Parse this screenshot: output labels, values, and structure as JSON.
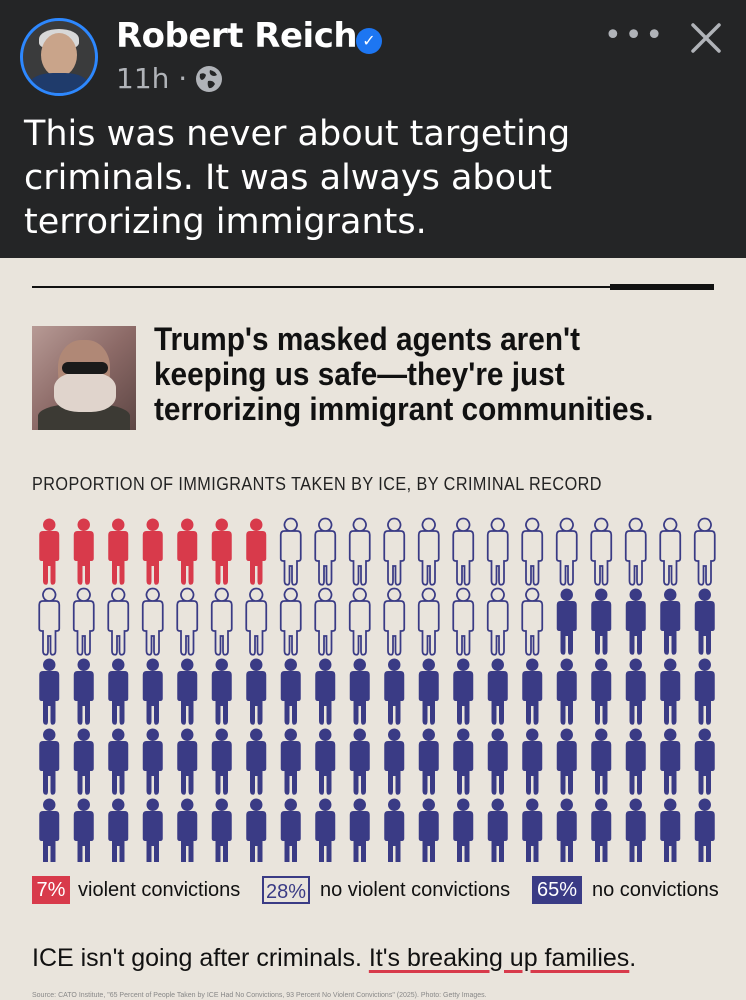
{
  "post": {
    "author": "Robert Reich",
    "verified_icon": "verified-badge-icon",
    "time": "11h",
    "separator": "·",
    "privacy_icon": "globe-icon",
    "more_label": "•••",
    "close_icon": "close-icon",
    "text": "This was never about targeting criminals. It was always about terrorizing immigrants."
  },
  "graphic": {
    "headline": "Trump's masked agents aren't keeping us safe—they're just terrorizing immigrant communities.",
    "subtitle": "PROPORTION OF IMMIGRANTS TAKEN BY ICE, BY CRIMINAL RECORD",
    "footer_prefix": "ICE isn't going after criminals. ",
    "footer_highlight": "It's breaking up families",
    "footer_suffix": ".",
    "source": "Source: CATO Institute, \"65 Percent of People Taken by ICE Had No Convictions, 93 Percent No Violent Convictions\" (2025). Photo: Getty Images."
  },
  "chart_data": {
    "type": "pictogram",
    "title": "PROPORTION OF IMMIGRANTS TAKEN BY ICE, BY CRIMINAL RECORD",
    "total_icons": 100,
    "columns": 20,
    "rows": 5,
    "categories": [
      {
        "name": "violent convictions",
        "percent_label": "7%",
        "value": 7,
        "color": "#d83a4b",
        "style": "filled"
      },
      {
        "name": "no violent convictions",
        "percent_label": "28%",
        "value": 28,
        "color": "#3a3b85",
        "style": "outline"
      },
      {
        "name": "no convictions",
        "percent_label": "65%",
        "value": 65,
        "color": "#3a3b85",
        "style": "filled"
      }
    ]
  },
  "colors": {
    "red": "#d83a4b",
    "navy": "#3a3b85",
    "paper": "#e9e4dc",
    "dark": "#242526"
  }
}
